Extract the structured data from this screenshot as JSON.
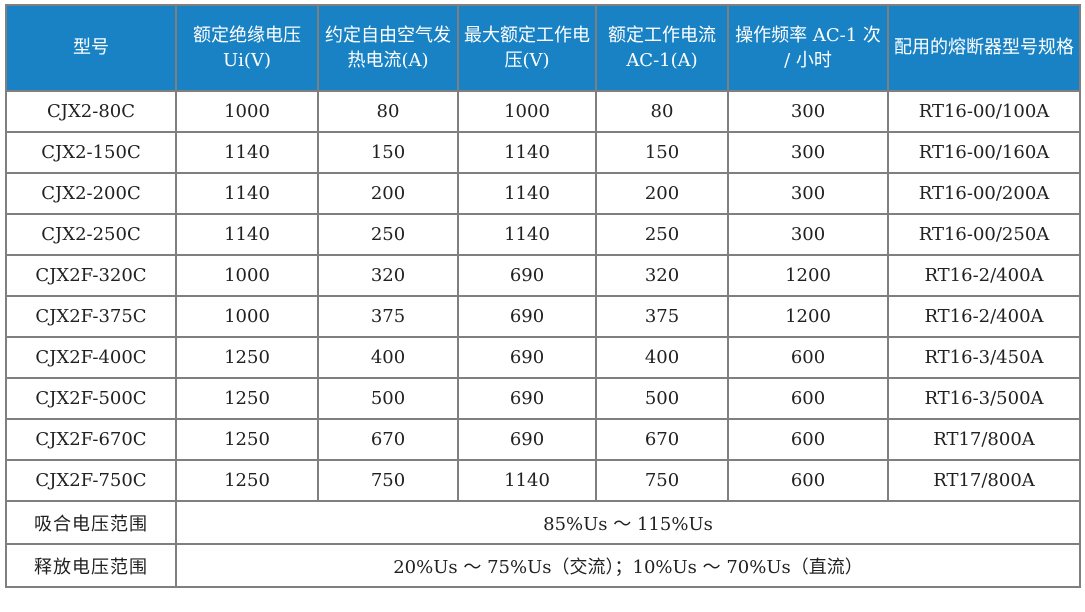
{
  "table": {
    "headers": [
      "型号",
      "额定绝缘电压 Ui(V)",
      "约定自由空气发热电流(A)",
      "最大额定工作电压(V)",
      "额定工作电流 AC-1(A)",
      "操作频率 AC-1 次 / 小时",
      "配用的熔断器型号规格"
    ],
    "rows": [
      [
        "CJX2-80C",
        "1000",
        "80",
        "1000",
        "80",
        "300",
        "RT16-00/100A"
      ],
      [
        "CJX2-150C",
        "1140",
        "150",
        "1140",
        "150",
        "300",
        "RT16-00/160A"
      ],
      [
        "CJX2-200C",
        "1140",
        "200",
        "1140",
        "200",
        "300",
        "RT16-00/200A"
      ],
      [
        "CJX2-250C",
        "1140",
        "250",
        "1140",
        "250",
        "300",
        "RT16-00/250A"
      ],
      [
        "CJX2F-320C",
        "1000",
        "320",
        "690",
        "320",
        "1200",
        "RT16-2/400A"
      ],
      [
        "CJX2F-375C",
        "1000",
        "375",
        "690",
        "375",
        "1200",
        "RT16-2/400A"
      ],
      [
        "CJX2F-400C",
        "1250",
        "400",
        "690",
        "400",
        "600",
        "RT16-3/450A"
      ],
      [
        "CJX2F-500C",
        "1250",
        "500",
        "690",
        "500",
        "600",
        "RT16-3/500A"
      ],
      [
        "CJX2F-670C",
        "1250",
        "670",
        "690",
        "670",
        "600",
        "RT17/800A"
      ],
      [
        "CJX2F-750C",
        "1250",
        "750",
        "1140",
        "750",
        "600",
        "RT17/800A"
      ]
    ],
    "footer_rows": [
      {
        "label": "吸合电压范围",
        "value": "85%Us ～ 115%Us"
      },
      {
        "label": "释放电压范围",
        "value": "20%Us ～ 75%Us（交流）；10%Us ～ 70%Us（直流）"
      }
    ]
  },
  "colors": {
    "header_bg": "#1882c4",
    "header_text": "#ffffff",
    "border": "#7f7f7f",
    "body_text": "#212121",
    "row_bg": "#ffffff"
  }
}
